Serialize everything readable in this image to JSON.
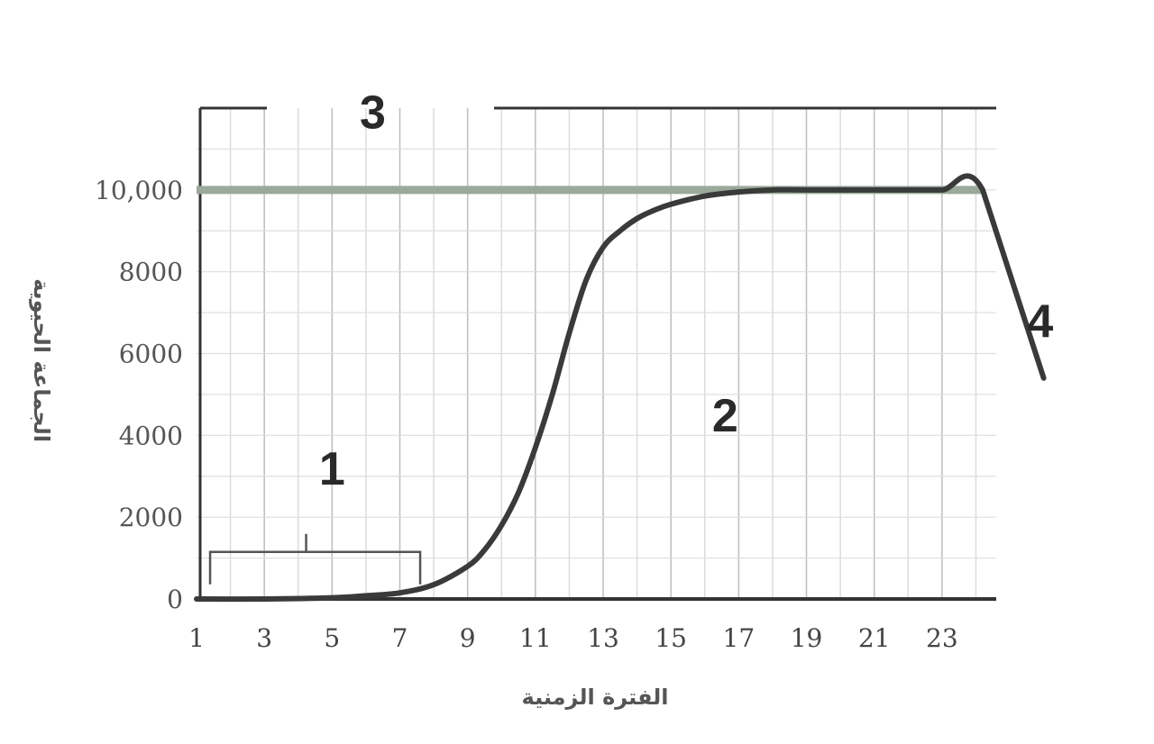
{
  "chart_data": {
    "type": "line",
    "title": "",
    "xlabel": "الفترة الزمنية",
    "ylabel": "الجماعة الحيوية",
    "xlim": [
      1,
      24.6
    ],
    "ylim": [
      0,
      12000
    ],
    "x_ticks": [
      "1",
      "3",
      "5",
      "7",
      "9",
      "11",
      "13",
      "15",
      "17",
      "19",
      "21",
      "23"
    ],
    "x_tick_values": [
      1,
      3,
      5,
      7,
      9,
      11,
      13,
      15,
      17,
      19,
      21,
      23
    ],
    "y_ticks": [
      "0",
      "2000",
      "4000",
      "6000",
      "8000",
      "10,000"
    ],
    "y_tick_values": [
      0,
      2000,
      4000,
      6000,
      8000,
      10000
    ],
    "grid": true,
    "series": [
      {
        "values_x": [
          1,
          3,
          5,
          6,
          7,
          8,
          9,
          9.5,
          10,
          10.5,
          11,
          11.5,
          12,
          12.5,
          13,
          13.5,
          14,
          14.5,
          15,
          16,
          17,
          18,
          19,
          20,
          21,
          22,
          23,
          24.2,
          26.0
        ],
        "values_y": [
          0,
          0,
          30,
          80,
          150,
          350,
          800,
          1200,
          1800,
          2600,
          3700,
          5000,
          6500,
          7800,
          8600,
          9000,
          9300,
          9500,
          9650,
          9850,
          9950,
          10000,
          10000,
          10000,
          10000,
          10000,
          10000,
          10000,
          5400
        ]
      }
    ],
    "reference_lines": [
      {
        "y": 10000,
        "from_x": 1,
        "to_x": 24.2
      }
    ],
    "annotations": [
      {
        "label": "1",
        "x": 5,
        "y": 2800
      },
      {
        "label": "2",
        "x": 16.6,
        "y": 4100
      },
      {
        "label": "3",
        "x": 6.2,
        "y": 11500
      },
      {
        "label": "4",
        "x": 25.9,
        "y": 6400
      }
    ],
    "bracket": {
      "from_x": 1.4,
      "to_x": 7.6,
      "y": 1150
    }
  }
}
